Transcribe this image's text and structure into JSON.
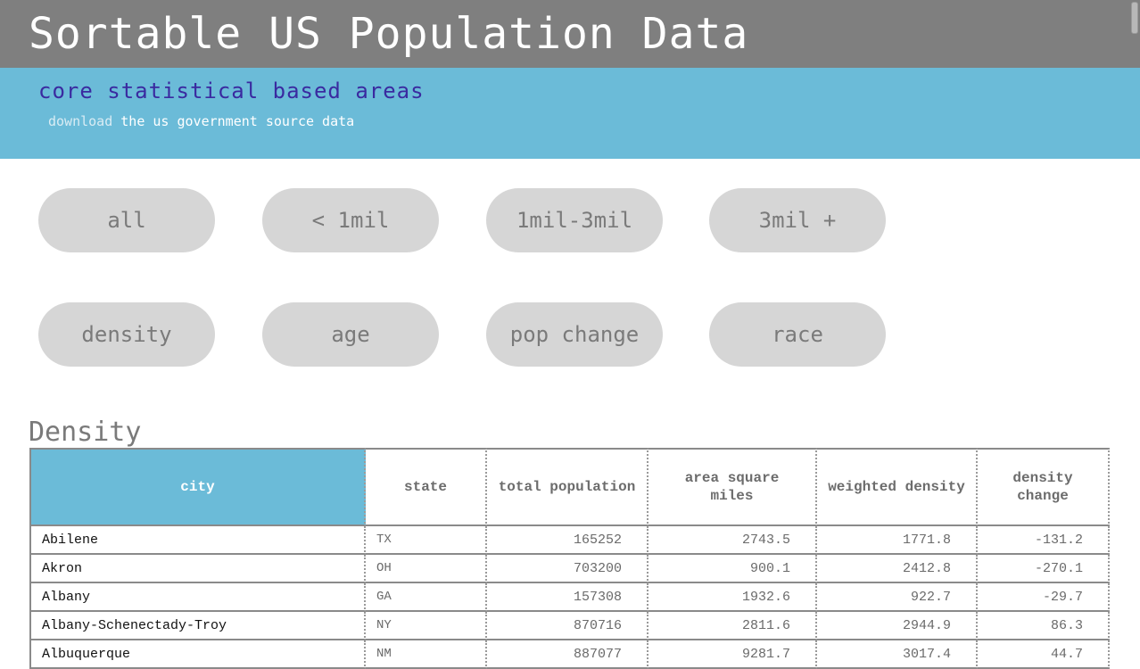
{
  "header": {
    "title": "Sortable US Population Data"
  },
  "subheader": {
    "title": "core statistical based areas",
    "download_link": "download",
    "download_rest": "the us government source data"
  },
  "filters": {
    "size": [
      {
        "label": "all"
      },
      {
        "label": "< 1mil"
      },
      {
        "label": "1mil-3mil"
      },
      {
        "label": "3mil +"
      }
    ],
    "category": [
      {
        "label": "density"
      },
      {
        "label": "age"
      },
      {
        "label": "pop change"
      },
      {
        "label": "race"
      }
    ]
  },
  "section": {
    "heading": "Density"
  },
  "table": {
    "sorted_column": "city",
    "columns": [
      "city",
      "state",
      "total population",
      "area square miles",
      "weighted density",
      "density change"
    ],
    "rows": [
      [
        "Abilene",
        "TX",
        "165252",
        "2743.5",
        "1771.8",
        "-131.2"
      ],
      [
        "Akron",
        "OH",
        "703200",
        "900.1",
        "2412.8",
        "-270.1"
      ],
      [
        "Albany",
        "GA",
        "157308",
        "1932.6",
        "922.7",
        "-29.7"
      ],
      [
        "Albany-Schenectady-Troy",
        "NY",
        "870716",
        "2811.6",
        "2944.9",
        "86.3"
      ],
      [
        "Albuquerque",
        "NM",
        "887077",
        "9281.7",
        "3017.4",
        "44.7"
      ]
    ]
  },
  "colors": {
    "topbar": "#7f7f7f",
    "subbar": "#6bbbd8",
    "subtitle": "#3a2aa0",
    "button": "#d6d6d6",
    "active_header": "#6bbbd8"
  }
}
